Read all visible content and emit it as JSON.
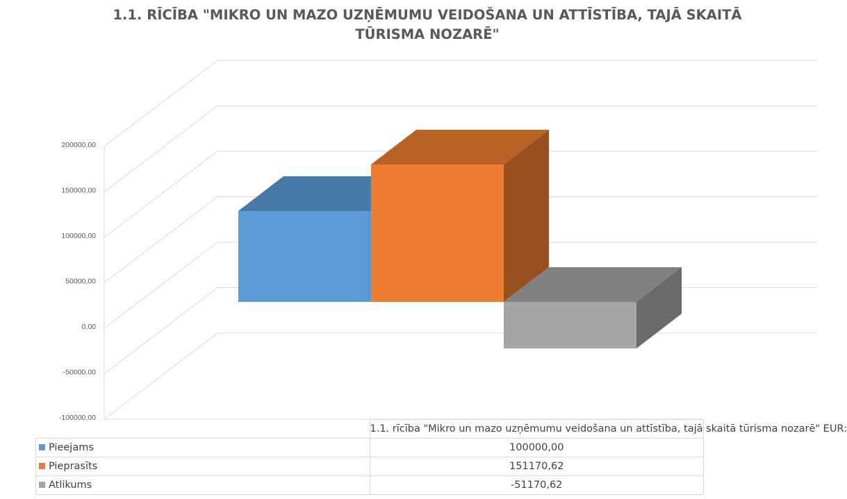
{
  "chart_data": {
    "type": "bar",
    "subtype": "3d-clustered-column",
    "title": "1.1. RĪCĪBA \"MIKRO UN MAZO UZŅĒMUMU VEIDOŠANA UN ATTĪSTĪBA, TAJĀ SKAITĀ TŪRISMA NOZARĒ\"",
    "xlabel": "",
    "ylabel": "",
    "ylim": [
      -100000,
      200000
    ],
    "yticks": [
      "-100000,00",
      "-50000,00",
      "0,00",
      "50000,00",
      "100000,00",
      "150000,00",
      "200000,00"
    ],
    "grid": true,
    "legend": "data-table",
    "categories": [
      "1.1. rīcība \"Mikro un mazo uzņēmumu veidošana un attīstība, tajā skaitā tūrisma nozarē\" EUR:"
    ],
    "series": [
      {
        "name": "Pieejams",
        "values": [
          100000.0
        ],
        "display": [
          "100000,00"
        ],
        "color": "#5b9bd5"
      },
      {
        "name": "Pieprasīts",
        "values": [
          151170.62
        ],
        "display": [
          "151170,62"
        ],
        "color": "#ed7d31"
      },
      {
        "name": "Atlikums",
        "values": [
          -51170.62
        ],
        "display": [
          "-51170,62"
        ],
        "color": "#a5a5a5"
      }
    ]
  }
}
